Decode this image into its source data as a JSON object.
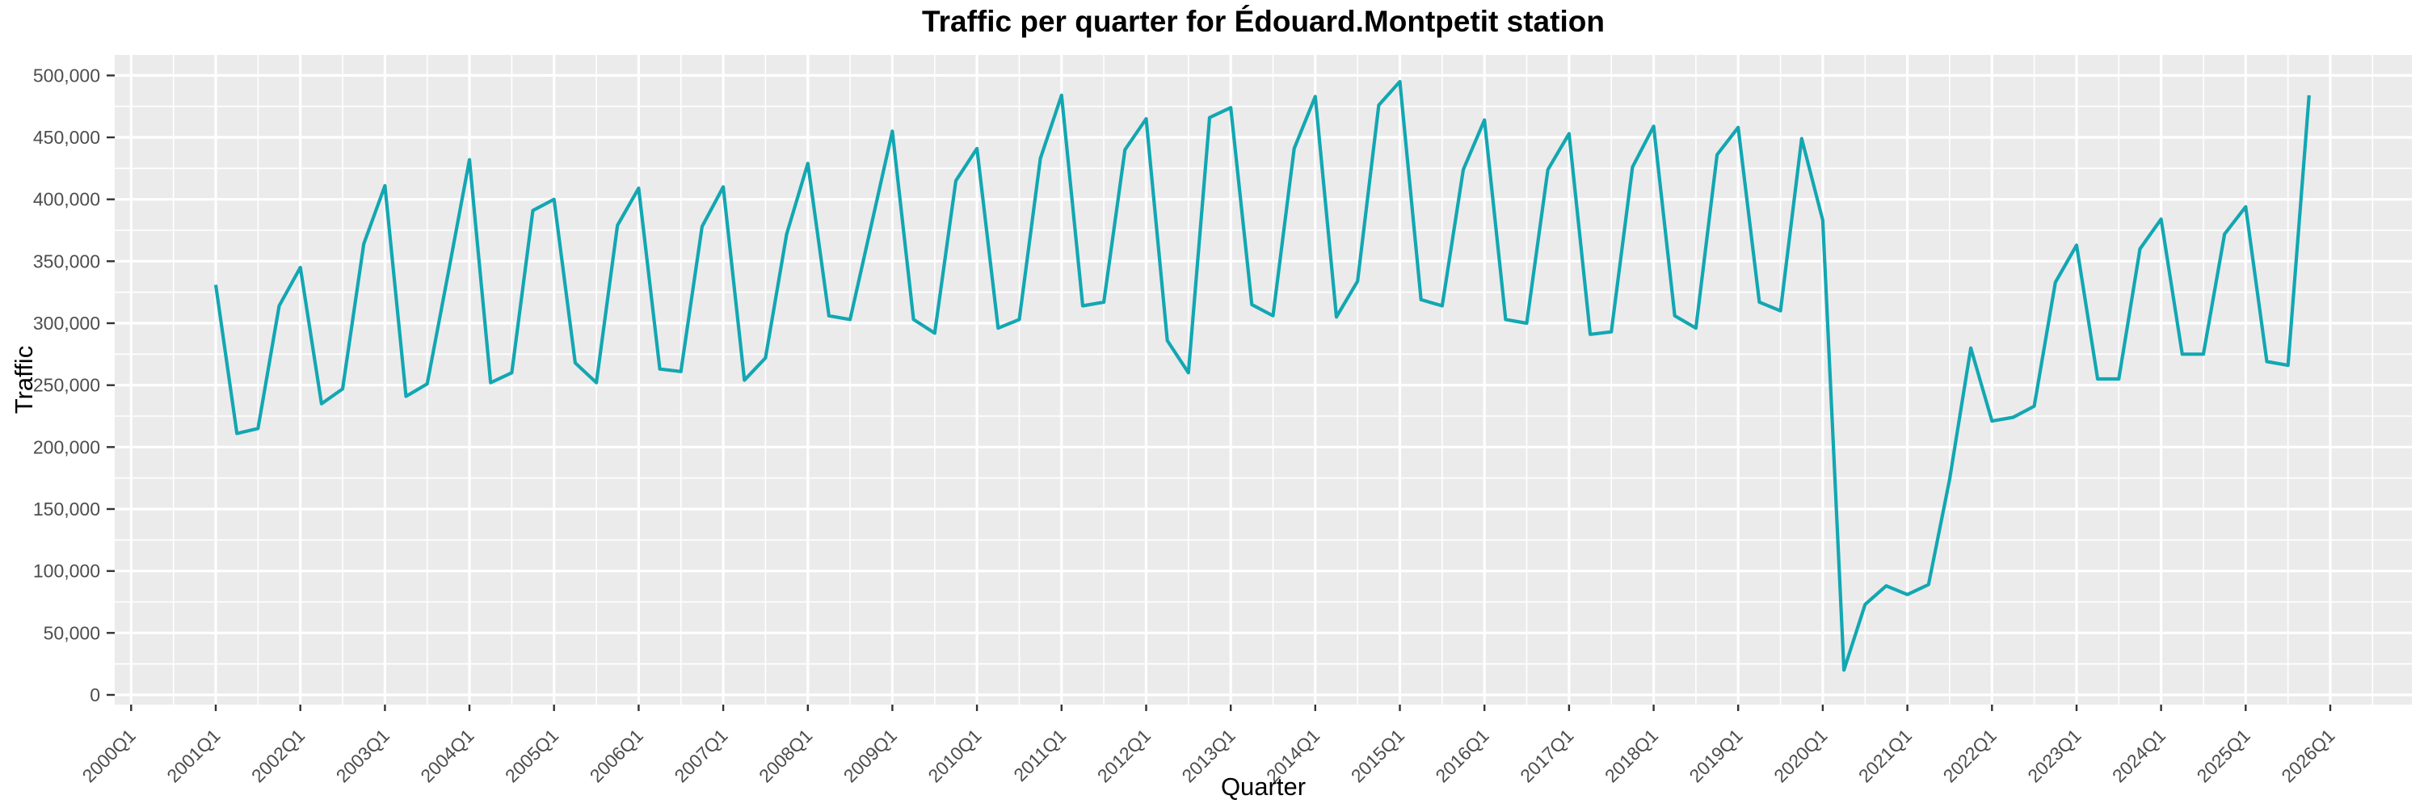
{
  "title": "Traffic per quarter for Édouard.Montpetit station",
  "x_axis": {
    "label": "Quarter",
    "tick_labels": [
      "2000Q1",
      "2001Q1",
      "2002Q1",
      "2003Q1",
      "2004Q1",
      "2005Q1",
      "2006Q1",
      "2007Q1",
      "2008Q1",
      "2009Q1",
      "2010Q1",
      "2011Q1",
      "2012Q1",
      "2013Q1",
      "2014Q1",
      "2015Q1",
      "2016Q1",
      "2017Q1",
      "2018Q1",
      "2019Q1",
      "2020Q1",
      "2021Q1",
      "2022Q1",
      "2023Q1",
      "2024Q1",
      "2025Q1",
      "2026Q1"
    ]
  },
  "y_axis": {
    "label": "Traffic",
    "tick_labels": [
      "0",
      "50,000",
      "100,000",
      "150,000",
      "200,000",
      "250,000",
      "300,000",
      "350,000",
      "400,000",
      "450,000",
      "500,000"
    ]
  },
  "colors": {
    "line": "#12a7b2",
    "panel_bg": "#ebebeb",
    "grid": "#ffffff",
    "tick_mark": "#333333",
    "tick_text": "#4d4d4d",
    "title_text": "#000000"
  },
  "chart_data": {
    "type": "line",
    "title": "Traffic per quarter for Édouard.Montpetit station",
    "xlabel": "Quarter",
    "ylabel": "Traffic",
    "ylim": [
      0,
      500000
    ],
    "grid": "ggplot-grey-panel-white-gridlines",
    "legend_position": "none",
    "x_start": "2001Q1",
    "x_end": "2025Q4",
    "x": [
      "2001Q1",
      "2001Q2",
      "2001Q3",
      "2001Q4",
      "2002Q1",
      "2002Q2",
      "2002Q3",
      "2002Q4",
      "2003Q1",
      "2003Q2",
      "2003Q3",
      "2003Q4",
      "2004Q1",
      "2004Q2",
      "2004Q3",
      "2004Q4",
      "2005Q1",
      "2005Q2",
      "2005Q3",
      "2005Q4",
      "2006Q1",
      "2006Q2",
      "2006Q3",
      "2006Q4",
      "2007Q1",
      "2007Q2",
      "2007Q3",
      "2007Q4",
      "2008Q1",
      "2008Q2",
      "2008Q3",
      "2008Q4",
      "2009Q1",
      "2009Q2",
      "2009Q3",
      "2009Q4",
      "2010Q1",
      "2010Q2",
      "2010Q3",
      "2010Q4",
      "2011Q1",
      "2011Q2",
      "2011Q3",
      "2011Q4",
      "2012Q1",
      "2012Q2",
      "2012Q3",
      "2012Q4",
      "2013Q1",
      "2013Q2",
      "2013Q3",
      "2013Q4",
      "2014Q1",
      "2014Q2",
      "2014Q3",
      "2014Q4",
      "2015Q1",
      "2015Q2",
      "2015Q3",
      "2015Q4",
      "2016Q1",
      "2016Q2",
      "2016Q3",
      "2016Q4",
      "2017Q1",
      "2017Q2",
      "2017Q3",
      "2017Q4",
      "2018Q1",
      "2018Q2",
      "2018Q3",
      "2018Q4",
      "2019Q1",
      "2019Q2",
      "2019Q3",
      "2019Q4",
      "2020Q1",
      "2020Q2",
      "2020Q3",
      "2020Q4",
      "2021Q1",
      "2021Q2",
      "2021Q3",
      "2021Q4",
      "2022Q1",
      "2022Q2",
      "2022Q3",
      "2022Q4",
      "2023Q1",
      "2023Q2",
      "2023Q3",
      "2023Q4",
      "2024Q1",
      "2024Q2",
      "2024Q3",
      "2024Q4",
      "2025Q1",
      "2025Q2",
      "2025Q3",
      "2025Q4"
    ],
    "series": [
      {
        "name": "traffic",
        "values": [
          331000,
          211000,
          215000,
          314000,
          345000,
          235000,
          247000,
          364000,
          411000,
          241000,
          251000,
          341000,
          432000,
          252000,
          260000,
          391000,
          400000,
          268000,
          252000,
          379000,
          409000,
          263000,
          261000,
          378000,
          410000,
          254000,
          272000,
          372000,
          429000,
          306000,
          303000,
          379000,
          455000,
          303000,
          292000,
          415000,
          441000,
          296000,
          303000,
          433000,
          484000,
          314000,
          317000,
          440000,
          465000,
          286000,
          260000,
          466000,
          474000,
          315000,
          306000,
          441000,
          483000,
          305000,
          334000,
          476000,
          495000,
          319000,
          314000,
          424000,
          464000,
          303000,
          300000,
          424000,
          453000,
          291000,
          293000,
          426000,
          459000,
          306000,
          296000,
          436000,
          458000,
          317000,
          310000,
          449000,
          383000,
          20000,
          73000,
          88000,
          81000,
          89000,
          174000,
          280000,
          221000,
          224000,
          233000,
          333000,
          363000,
          255000,
          255000,
          360000,
          384000,
          275000,
          275000,
          372000,
          394000,
          269000,
          266000,
          484000
        ]
      }
    ]
  }
}
